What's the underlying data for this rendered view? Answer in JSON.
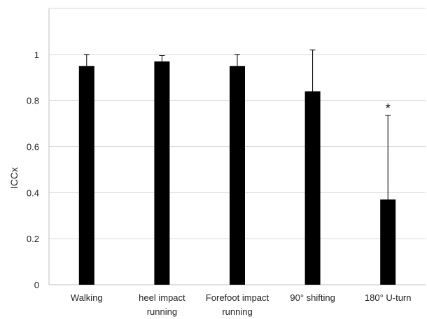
{
  "chart_data": {
    "type": "bar",
    "title": "",
    "xlabel": "",
    "ylabel": "ICCx",
    "categories": [
      [
        "Walking"
      ],
      [
        "heel impact",
        "running"
      ],
      [
        "Forefoot impact",
        "running"
      ],
      [
        "90° shifting"
      ],
      [
        "180° U-turn"
      ]
    ],
    "values": [
      0.95,
      0.97,
      0.95,
      0.84,
      0.37
    ],
    "error_upper": [
      1.0,
      0.995,
      1.0,
      1.02,
      0.735
    ],
    "ylim": [
      0,
      1.2
    ],
    "yticks": [
      "0",
      "0.2",
      "0.4",
      "0.6",
      "0.8",
      "1"
    ],
    "grid": true,
    "bar_color": "#000000",
    "grid_color": "#d9d9d9",
    "annotations": [
      {
        "category_index": 4,
        "text": "*"
      }
    ]
  }
}
